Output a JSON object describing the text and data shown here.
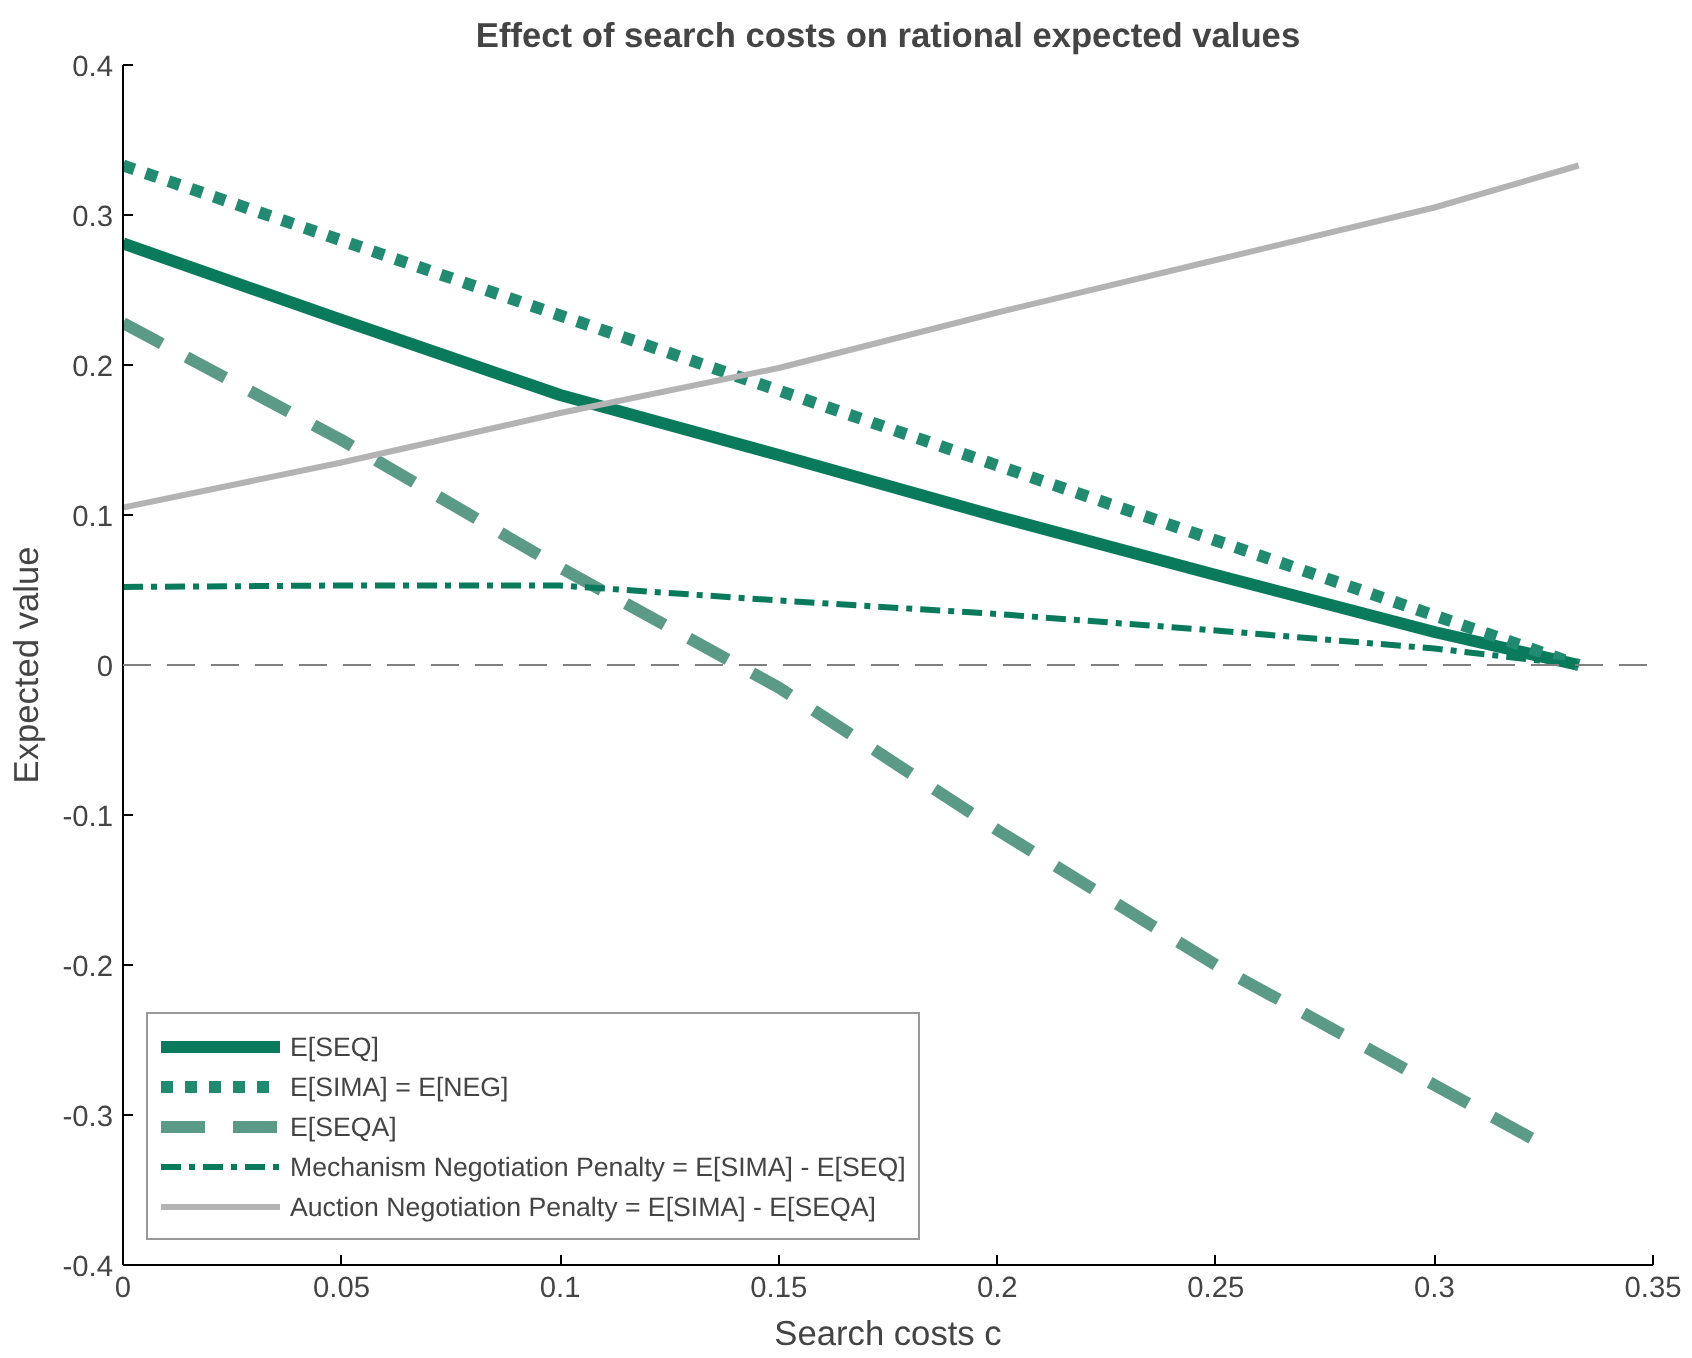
{
  "chart_data": {
    "type": "line",
    "title": "Effect of search costs on rational expected values",
    "xlabel": "Search costs c",
    "ylabel": "Expected value",
    "x": [
      0,
      0.05,
      0.1,
      0.15,
      0.2,
      0.25,
      0.3,
      0.333
    ],
    "xlim": [
      0,
      0.35
    ],
    "xticks": [
      0,
      0.05,
      0.1,
      0.15,
      0.2,
      0.25,
      0.3,
      0.35
    ],
    "ylim": [
      -0.4,
      0.4
    ],
    "yticks": [
      -0.4,
      -0.3,
      -0.2,
      -0.1,
      0,
      0.1,
      0.2,
      0.3,
      0.4
    ],
    "grid": false,
    "legend": "bottom left",
    "ref_lines": [
      {
        "axis": "y",
        "value": 0,
        "color": "#808080",
        "line_style": "dashed"
      }
    ],
    "series": [
      {
        "name": "E[SEQ]",
        "color": "#0a7a5c",
        "line_style": "solid",
        "values": [
          0.281,
          0.23,
          0.18,
          0.14,
          0.099,
          0.06,
          0.022,
          0
        ]
      },
      {
        "name": "E[SIMA] = E[NEG]",
        "color": "#238a72",
        "line_style": "dotted",
        "values": [
          0.333,
          0.283,
          0.233,
          0.183,
          0.133,
          0.083,
          0.033,
          0
        ]
      },
      {
        "name": "E[SEQA]",
        "x": [
          0,
          0.05,
          0.1,
          0.15,
          0.2,
          0.25,
          0.3,
          0.325
        ],
        "color": "#5c9a88",
        "line_style": "dashed",
        "values": [
          0.228,
          0.15,
          0.065,
          -0.015,
          -0.11,
          -0.2,
          -0.28,
          -0.32
        ]
      },
      {
        "name": "Mechanism Negotiation Penalty = E[SIMA] - E[SEQ]",
        "color": "#0a7a5c",
        "line_style": "dashdot",
        "values": [
          0.052,
          0.053,
          0.053,
          0.043,
          0.034,
          0.023,
          0.011,
          0
        ]
      },
      {
        "name": "Auction Negotiation Penalty = E[SIMA] - E[SEQA]",
        "color": "#b3b3b3",
        "line_style": "solid",
        "values": [
          0.105,
          0.135,
          0.168,
          0.198,
          0.235,
          0.27,
          0.305,
          0.333
        ]
      }
    ]
  }
}
